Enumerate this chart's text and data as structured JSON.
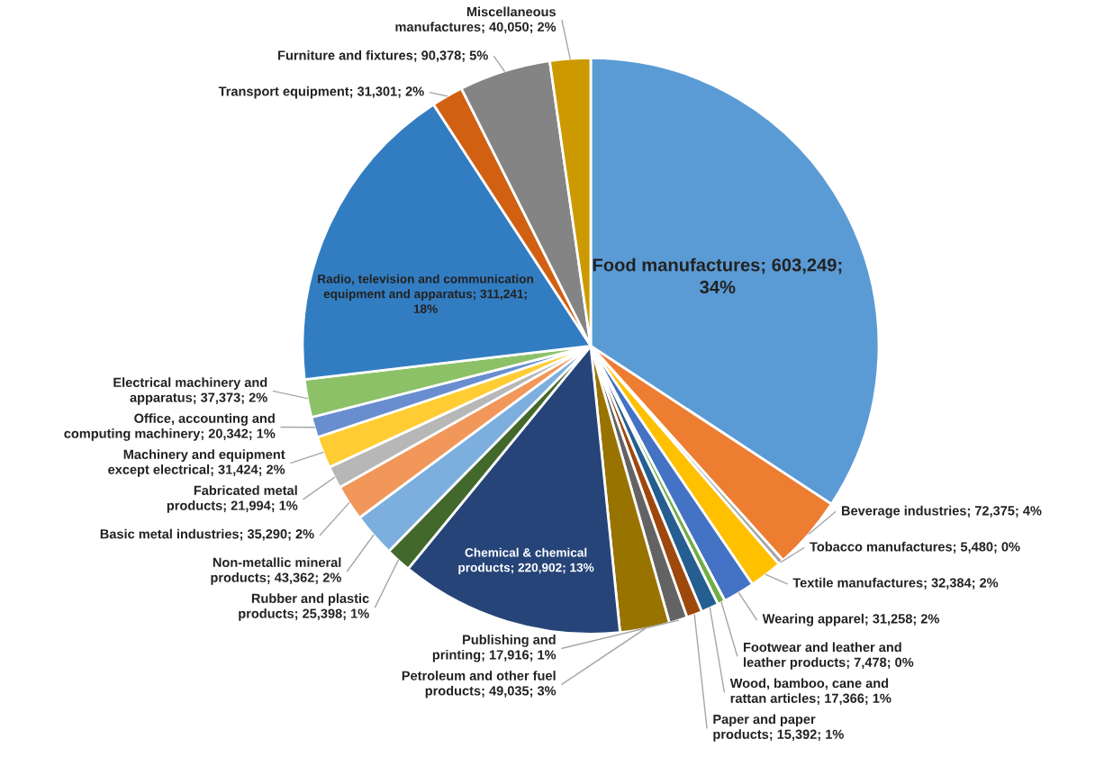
{
  "chart_data": {
    "type": "pie",
    "categories": [
      "Food manufactures",
      "Beverage industries",
      "Tobacco manufactures",
      "Textile manufactures",
      "Wearing apparel",
      "Footwear and leather and leather products",
      "Wood, bamboo, cane and rattan articles",
      "Paper and paper products",
      "Publishing and printing",
      "Petroleum and other fuel products",
      "Chemical & chemical products",
      "Rubber and plastic products",
      "Non-metallic mineral products",
      "Basic metal industries",
      "Fabricated metal products",
      "Machinery and equipment except electrical",
      "Office, accounting and computing machinery",
      "Electrical machinery and apparatus",
      "Radio, television and communication equipment and apparatus",
      "Transport equipment",
      "Furniture and fixtures",
      "Miscellaneous manufactures"
    ],
    "values": [
      603249,
      72375,
      5480,
      32384,
      31258,
      7478,
      17366,
      15392,
      17916,
      49035,
      220902,
      25398,
      43362,
      35290,
      21994,
      31424,
      20342,
      37373,
      311241,
      31301,
      90378,
      40050
    ],
    "value_labels": [
      "603,249; 34%",
      "72,375; 4%",
      "5,480; 0%",
      "32,384; 2%",
      "31,258; 2%",
      "7,478; 0%",
      "17,366; 1%",
      "15,392; 1%",
      "17,916; 1%",
      "49,035; 3%",
      "220,902; 13%",
      "25,398; 1%",
      "43,362; 2%",
      "35,290; 2%",
      "21,994; 1%",
      "31,424; 2%",
      "20,342; 1%",
      "37,373; 2%",
      "311,241; 18%",
      "31,301; 2%",
      "90,378; 5%",
      "40,050; 2%"
    ],
    "colors": [
      "#5b9bd5",
      "#ed7d31",
      "#a5a5a5",
      "#ffc000",
      "#4472c4",
      "#70ad47",
      "#255e91",
      "#9e480e",
      "#636363",
      "#997300",
      "#264478",
      "#43682b",
      "#7cafdd",
      "#f1975a",
      "#b7b7b7",
      "#ffcd33",
      "#698ed0",
      "#8cc168",
      "#327dc2",
      "#d26012",
      "#848484",
      "#cc9a00"
    ]
  }
}
